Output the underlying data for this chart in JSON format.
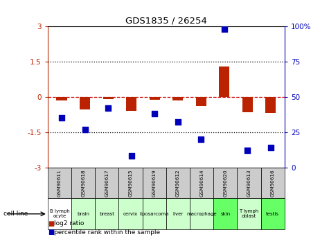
{
  "title": "GDS1835 / 26254",
  "samples": [
    "GSM90611",
    "GSM90618",
    "GSM90617",
    "GSM90615",
    "GSM90619",
    "GSM90612",
    "GSM90614",
    "GSM90620",
    "GSM90613",
    "GSM90616"
  ],
  "cell_lines": [
    "B lymph\nocyte",
    "brain",
    "breast",
    "cervix",
    "liposarcoma\n",
    "liver",
    "macrophage\n",
    "skin",
    "T lymph\noblast",
    "testis"
  ],
  "cell_line_colors": [
    "#ffffff",
    "#ccffcc",
    "#ccffcc",
    "#ccffcc",
    "#ccffcc",
    "#ccffcc",
    "#ccffcc",
    "#66ff66",
    "#ccffcc",
    "#66ff66"
  ],
  "log2_ratio": [
    -0.15,
    -0.55,
    -0.1,
    -0.6,
    -0.12,
    -0.15,
    -0.4,
    1.3,
    -0.65,
    -0.7
  ],
  "percentile_rank_pct": [
    35,
    27,
    42,
    8,
    38,
    32,
    20,
    98,
    12,
    14
  ],
  "ylim_left": [
    -3,
    3
  ],
  "ylim_right": [
    0,
    100
  ],
  "yticks_left": [
    -3,
    -1.5,
    0,
    1.5,
    3
  ],
  "yticks_right": [
    0,
    25,
    50,
    75,
    100
  ],
  "ytick_labels_left": [
    "-3",
    "-1.5",
    "0",
    "1.5",
    "3"
  ],
  "ytick_labels_right": [
    "0",
    "25",
    "50",
    "75",
    "100%"
  ],
  "bar_color": "#bb2200",
  "dot_color": "#0000bb",
  "zero_line_color": "#cc0000",
  "dotted_line_color": "#000000",
  "gsm_bg_color": "#cccccc",
  "background_color": "#ffffff"
}
